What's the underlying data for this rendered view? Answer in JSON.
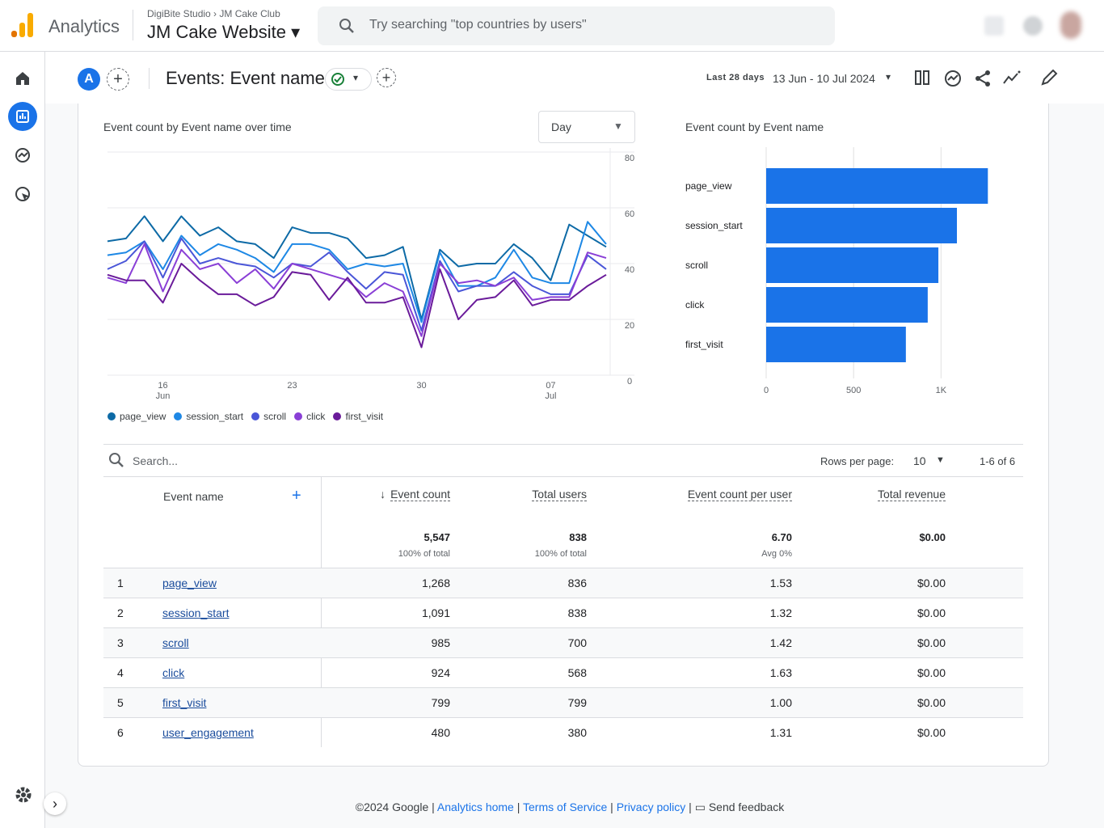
{
  "header": {
    "product": "Analytics",
    "account": "DigiBite Studio",
    "property": "JM Cake Club",
    "stream": "JM Cake Website",
    "search_placeholder": "Try searching \"top countries by users\""
  },
  "toolbar": {
    "comparison": "A",
    "title": "Events: Event name",
    "date_range_label": "Last 28 days",
    "date_range": "13 Jun - 10 Jul 2024"
  },
  "granularity": "Day",
  "chart_data": [
    {
      "type": "line",
      "title": "Event count by Event name over time",
      "categories": [
        null,
        null,
        null,
        "16 Jun",
        null,
        null,
        null,
        null,
        null,
        null,
        "23",
        null,
        null,
        null,
        null,
        null,
        null,
        "30",
        null,
        null,
        null,
        null,
        null,
        null,
        "07 Jul",
        null,
        null,
        null
      ],
      "series": [
        {
          "name": "page_view",
          "color": "#0d6aa6",
          "values": [
            48,
            49,
            57,
            48,
            57,
            50,
            53,
            48,
            47,
            42,
            53,
            51,
            51,
            49,
            42,
            43,
            46,
            20,
            45,
            39,
            40,
            40,
            47,
            42,
            34,
            54,
            50,
            46
          ]
        },
        {
          "name": "session_start",
          "color": "#1e88e5",
          "values": [
            43,
            44,
            48,
            38,
            50,
            43,
            47,
            45,
            42,
            37,
            47,
            47,
            45,
            38,
            40,
            39,
            40,
            19,
            44,
            32,
            32,
            35,
            45,
            35,
            33,
            33,
            55,
            47
          ]
        },
        {
          "name": "scroll",
          "color": "#4a56d8",
          "values": [
            38,
            41,
            48,
            35,
            49,
            40,
            42,
            40,
            39,
            35,
            40,
            39,
            44,
            37,
            31,
            37,
            36,
            16,
            41,
            30,
            32,
            32,
            37,
            32,
            29,
            29,
            43,
            38
          ]
        },
        {
          "name": "click",
          "color": "#8a3fd6",
          "values": [
            35,
            33,
            47,
            30,
            45,
            38,
            40,
            33,
            38,
            31,
            40,
            38,
            36,
            34,
            28,
            33,
            30,
            14,
            40,
            33,
            34,
            32,
            35,
            27,
            28,
            28,
            44,
            42
          ]
        },
        {
          "name": "first_visit",
          "color": "#6a1b9a",
          "values": [
            36,
            34,
            34,
            26,
            40,
            34,
            29,
            29,
            25,
            28,
            37,
            36,
            27,
            35,
            26,
            26,
            28,
            10,
            38,
            20,
            27,
            28,
            34,
            25,
            27,
            27,
            32,
            36
          ]
        }
      ],
      "ylim": [
        0,
        80
      ],
      "yticks": [
        0,
        20,
        40,
        60,
        80
      ],
      "grid": true,
      "legend": "bottom"
    },
    {
      "type": "bar",
      "orientation": "horizontal",
      "title": "Event count by Event name",
      "categories": [
        "page_view",
        "session_start",
        "scroll",
        "click",
        "first_visit"
      ],
      "values": [
        1268,
        1091,
        985,
        924,
        799
      ],
      "color": "#1a73e8",
      "xlim": [
        0,
        1470
      ],
      "xticks": [
        0,
        500,
        {
          "value": 1000,
          "label": "1K"
        }
      ],
      "grid": true
    }
  ],
  "table": {
    "search_placeholder": "Search...",
    "rows_per_page_label": "Rows per page:",
    "rows_per_page": "10",
    "pagination": "1-6 of 6",
    "columns": [
      "Event name",
      "Event count",
      "Total users",
      "Event count per user",
      "Total revenue"
    ],
    "totals": [
      {
        "value": "5,547",
        "note": "100% of total"
      },
      {
        "value": "838",
        "note": "100% of total"
      },
      {
        "value": "6.70",
        "note": "Avg 0%"
      },
      {
        "value": "$0.00"
      }
    ],
    "rows": [
      [
        "1",
        "page_view",
        "1,268",
        "836",
        "1.53",
        "$0.00"
      ],
      [
        "2",
        "session_start",
        "1,091",
        "838",
        "1.32",
        "$0.00"
      ],
      [
        "3",
        "scroll",
        "985",
        "700",
        "1.42",
        "$0.00"
      ],
      [
        "4",
        "click",
        "924",
        "568",
        "1.63",
        "$0.00"
      ],
      [
        "5",
        "first_visit",
        "799",
        "799",
        "1.00",
        "$0.00"
      ],
      [
        "6",
        "user_engagement",
        "480",
        "380",
        "1.31",
        "$0.00"
      ]
    ]
  },
  "footer": {
    "copyright": "©2024 Google",
    "links": [
      "Analytics home",
      "Terms of Service",
      "Privacy policy"
    ],
    "feedback": "Send feedback"
  }
}
